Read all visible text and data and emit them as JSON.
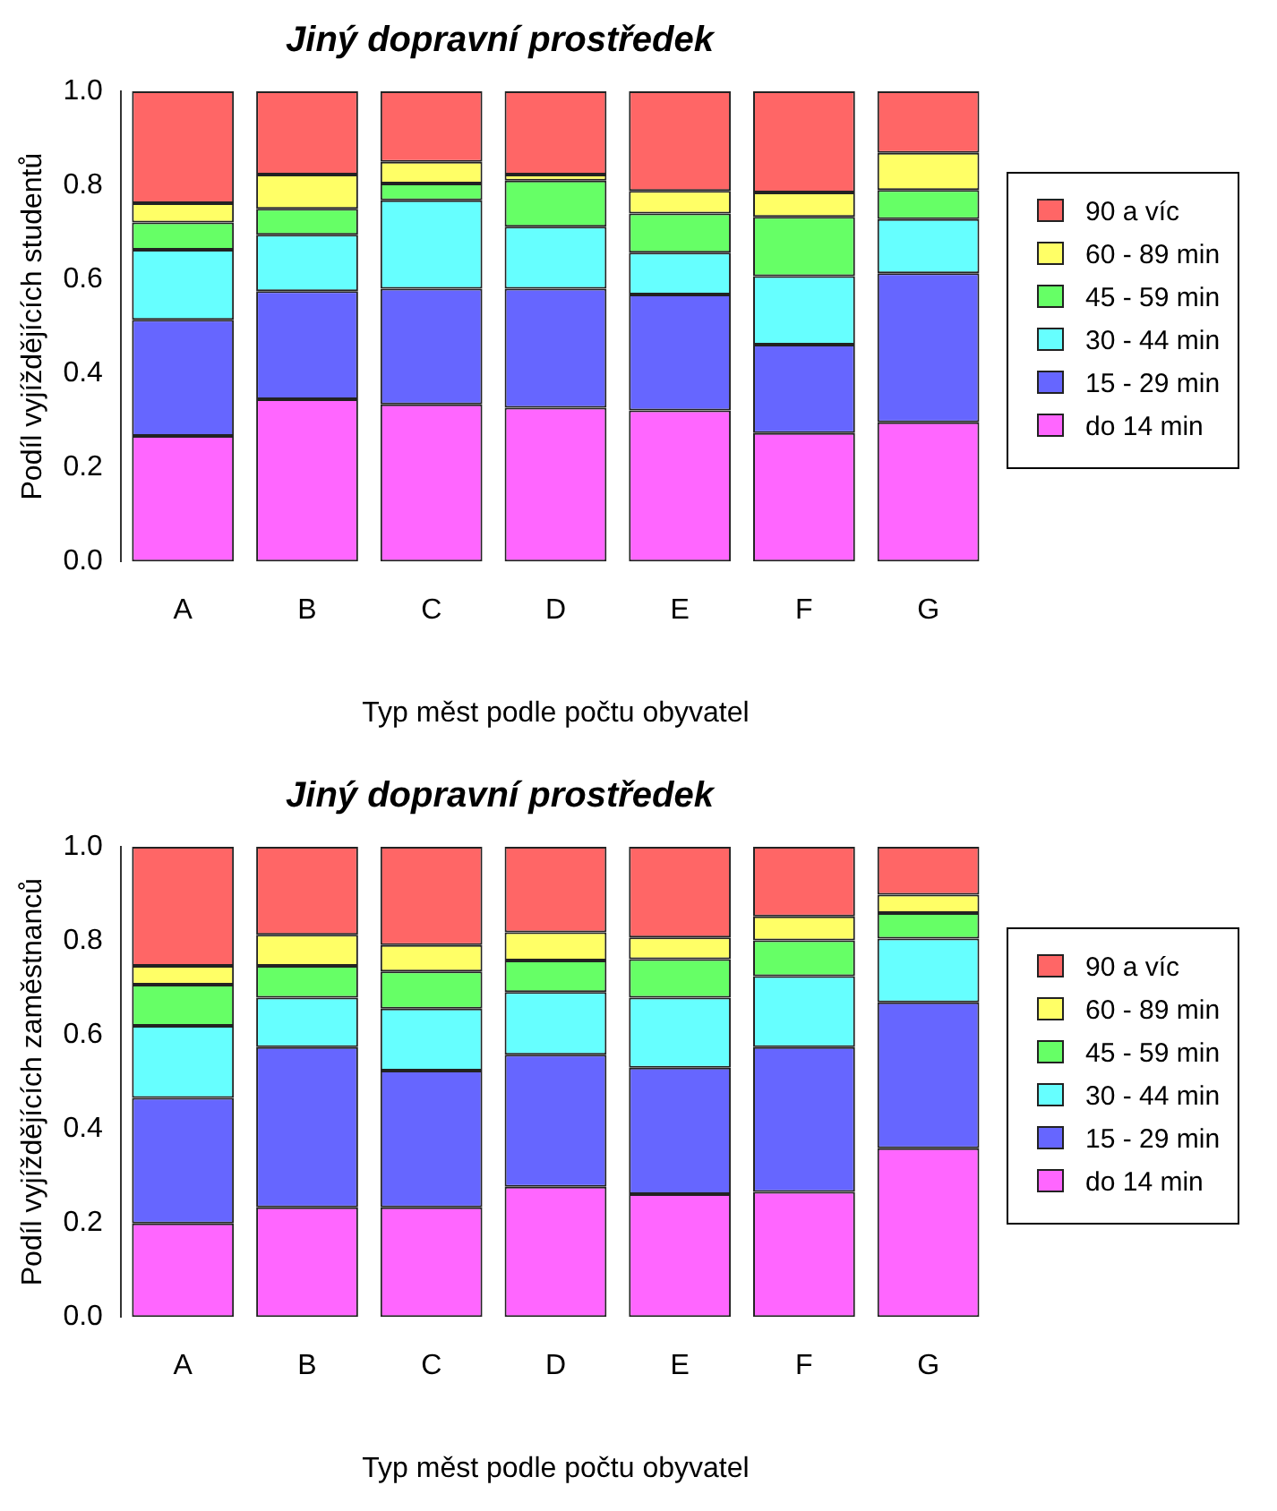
{
  "chart_data": [
    {
      "type": "bar",
      "stacked": true,
      "title": "Jiný dopravní prostředek",
      "xlabel": "Typ měst podle počtu obyvatel",
      "ylabel": "Podíl vyjíždějících studentů",
      "categories": [
        "A",
        "B",
        "C",
        "D",
        "E",
        "F",
        "G"
      ],
      "ylim": [
        0,
        1
      ],
      "yticks": [
        {
          "value": 0,
          "label": "0.0"
        },
        {
          "value": 0.2,
          "label": "0.2"
        },
        {
          "value": 0.4,
          "label": "0.4"
        },
        {
          "value": 0.6,
          "label": "0.6"
        },
        {
          "value": 0.8,
          "label": "0.8"
        },
        {
          "value": 1,
          "label": "1.0"
        }
      ],
      "grid": false,
      "legend": "right",
      "series": [
        {
          "name": "do 14 min",
          "color": "#ff66ff",
          "values": [
            0.267,
            0.345,
            0.334,
            0.327,
            0.321,
            0.273,
            0.296
          ]
        },
        {
          "name": "15 - 29 min",
          "color": "#6666ff",
          "values": [
            0.247,
            0.23,
            0.246,
            0.253,
            0.247,
            0.188,
            0.317
          ]
        },
        {
          "name": "30 - 44 min",
          "color": "#66ffff",
          "values": [
            0.149,
            0.12,
            0.188,
            0.132,
            0.089,
            0.146,
            0.115
          ]
        },
        {
          "name": "45 - 59 min",
          "color": "#66ff66",
          "values": [
            0.058,
            0.055,
            0.036,
            0.098,
            0.083,
            0.126,
            0.062
          ]
        },
        {
          "name": "60 - 89 min",
          "color": "#ffff66",
          "values": [
            0.041,
            0.073,
            0.046,
            0.013,
            0.048,
            0.052,
            0.079
          ]
        },
        {
          "name": "90 a víc",
          "color": "#ff6666",
          "values": [
            0.238,
            0.177,
            0.15,
            0.177,
            0.212,
            0.215,
            0.131
          ]
        }
      ]
    },
    {
      "type": "bar",
      "stacked": true,
      "title": "Jiný dopravní prostředek",
      "xlabel": "Typ měst podle počtu obyvatel",
      "ylabel": "Podíl vyjíždějících zaměstnanců",
      "categories": [
        "A",
        "B",
        "C",
        "D",
        "E",
        "F",
        "G"
      ],
      "ylim": [
        0,
        1
      ],
      "yticks": [
        {
          "value": 0,
          "label": "0.0"
        },
        {
          "value": 0.2,
          "label": "0.2"
        },
        {
          "value": 0.4,
          "label": "0.4"
        },
        {
          "value": 0.6,
          "label": "0.6"
        },
        {
          "value": 0.8,
          "label": "0.8"
        },
        {
          "value": 1,
          "label": "1.0"
        }
      ],
      "grid": false,
      "legend": "right",
      "series": [
        {
          "name": "do 14 min",
          "color": "#ff66ff",
          "values": [
            0.199,
            0.233,
            0.233,
            0.277,
            0.261,
            0.266,
            0.359
          ]
        },
        {
          "name": "15 - 29 min",
          "color": "#6666ff",
          "values": [
            0.267,
            0.341,
            0.291,
            0.281,
            0.269,
            0.308,
            0.31
          ]
        },
        {
          "name": "30 - 44 min",
          "color": "#66ffff",
          "values": [
            0.153,
            0.105,
            0.132,
            0.133,
            0.149,
            0.151,
            0.136
          ]
        },
        {
          "name": "45 - 59 min",
          "color": "#66ff66",
          "values": [
            0.088,
            0.068,
            0.079,
            0.067,
            0.082,
            0.076,
            0.054
          ]
        },
        {
          "name": "60 - 89 min",
          "color": "#ffff66",
          "values": [
            0.04,
            0.066,
            0.056,
            0.06,
            0.046,
            0.051,
            0.039
          ]
        },
        {
          "name": "90 a víc",
          "color": "#ff6666",
          "values": [
            0.253,
            0.187,
            0.209,
            0.182,
            0.193,
            0.148,
            0.102
          ]
        }
      ]
    }
  ]
}
